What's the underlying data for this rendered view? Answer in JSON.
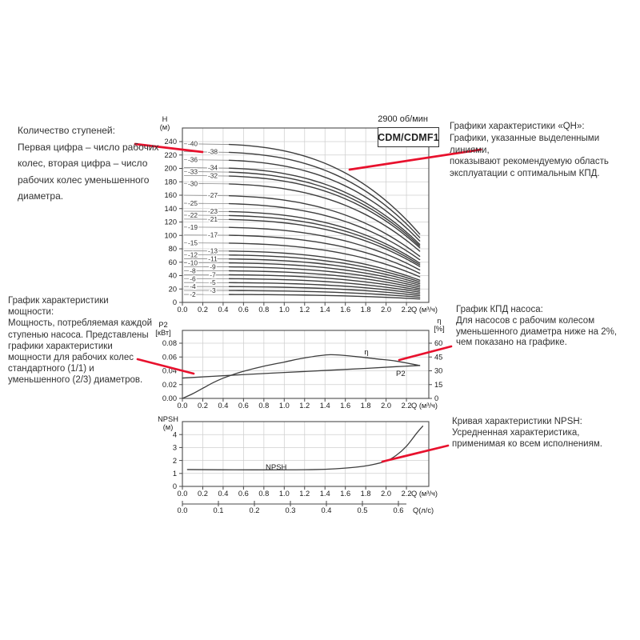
{
  "header": {
    "speed": "2900 об/мин",
    "model": "CDM/CDMF1"
  },
  "annotations": {
    "stages": {
      "title": "Количество ступеней:",
      "body": "Первая цифра – число рабочих\nколес, вторая цифра – число\nрабочих колес уменьшенного\nдиаметра."
    },
    "qh": {
      "title": "Графики характеристики «QH»:",
      "body": "Графики, указанные выделенными линиями,\nпоказывают рекомендуемую область\nэксплуатации с оптимальным КПД."
    },
    "power": {
      "title": "График характеристики мощности:",
      "body": "Мощность, потребляемая каждой\nступенью насоса. Представлены\nграфики характеристики\nмощности для рабочих колес\nстандартного (1/1) и\nуменьшенного (2/3) диаметров."
    },
    "efficiency": {
      "title": "График КПД насоса:",
      "body": "Для насосов с рабочим колесом\nуменьшенного диаметра ниже на 2%,\nчем показано на графике."
    },
    "npsh": {
      "title": "Кривая характеристики NPSH:",
      "body": "Усредненная характеристика,\nприменимая ко всем исполнениям."
    }
  },
  "colors": {
    "accent": "#e8112d",
    "curve": "#3d3d3d",
    "thin_curve": "#8a8a8a",
    "grid": "#cfcfcf",
    "frame": "#4a4a4a",
    "tick_text": "#1a1a1a"
  },
  "chart_data": [
    {
      "id": "qh",
      "type": "line",
      "title": "CDM/CDMF1",
      "rpm": "2900 об/мин",
      "ylabel": "H\n(м)",
      "xlabel": "Q (м³/ч)",
      "xticks": [
        "0.0",
        "0.2",
        "0.4",
        "0.6",
        "0.8",
        "1.0",
        "1.2",
        "1.4",
        "1.6",
        "1.8",
        "2.0",
        "2.2"
      ],
      "yticks": [
        0,
        20,
        40,
        60,
        80,
        100,
        120,
        140,
        160,
        180,
        200,
        220,
        240
      ],
      "xlim": [
        0,
        2.42
      ],
      "ylim": [
        0,
        260
      ],
      "stage_labels": [
        "-40",
        "-38",
        "-36",
        "-34",
        "-33",
        "-32",
        "-30",
        "-27",
        "-25",
        "-23",
        "-22",
        "-21",
        "-19",
        "-17",
        "-15",
        "-13",
        "-12",
        "-11",
        "-10",
        "-9",
        "-8",
        "-7",
        "-6",
        "-5",
        "-4",
        "-3",
        "-2"
      ],
      "head_per_stage_m": 5.92,
      "droop_coef": 0.045,
      "q_bold_range": [
        0.46,
        2.33
      ],
      "note": "H(q) = stages × 5.92 × (1 − 0.045·q³), bold segment = recommended duty range"
    },
    {
      "id": "power",
      "type": "line",
      "ylabel_left": "P2\n[кВт]",
      "ylabel_right": "η\n[%]",
      "xlabel": "Q (м³/ч)",
      "xticks": [
        "0.0",
        "0.2",
        "0.4",
        "0.6",
        "0.8",
        "1.0",
        "1.2",
        "1.4",
        "1.6",
        "1.8",
        "2.0",
        "2.2"
      ],
      "yticks_left": [
        "0.00",
        "0.02",
        "0.04",
        "0.06",
        "0.08"
      ],
      "yticks_right": [
        0,
        15,
        30,
        45,
        60
      ],
      "ylim_left": [
        0,
        0.0985
      ],
      "ylim_right": [
        0,
        74
      ],
      "series": [
        {
          "name": "P2",
          "axis": "left",
          "x": [
            0,
            0.3,
            0.6,
            1.0,
            1.4,
            1.8,
            2.1,
            2.33
          ],
          "y": [
            0.0295,
            0.032,
            0.0345,
            0.0375,
            0.0405,
            0.0435,
            0.046,
            0.0477
          ]
        },
        {
          "name": "η",
          "axis": "right",
          "x": [
            0,
            0.1,
            0.2,
            0.3,
            0.4,
            0.5,
            0.6,
            0.8,
            1.0,
            1.2,
            1.45,
            1.7,
            1.9,
            2.1,
            2.33
          ],
          "y": [
            0,
            5,
            11,
            17,
            22,
            26,
            29.5,
            35,
            39.5,
            44,
            47.5,
            45.5,
            43,
            40.5,
            35.7
          ]
        }
      ]
    },
    {
      "id": "npsh",
      "type": "line",
      "ylabel": "NPSH\n(м)",
      "xlabel": "Q (м³/ч)",
      "xlabel2": "Q(л/с)",
      "xticks": [
        "0.0",
        "0.2",
        "0.4",
        "0.6",
        "0.8",
        "1.0",
        "1.2",
        "1.4",
        "1.6",
        "1.8",
        "2.0",
        "2.2"
      ],
      "yticks": [
        0,
        1,
        2,
        3,
        4
      ],
      "xticks2": [
        "0.0",
        "0.1",
        "0.2",
        "0.3",
        "0.4",
        "0.5",
        "0.6"
      ],
      "ylim": [
        0,
        5
      ],
      "series": [
        {
          "name": "NPSH",
          "x": [
            0.05,
            0.5,
            1.0,
            1.3,
            1.5,
            1.7,
            1.85,
            2.0,
            2.1,
            2.2,
            2.3,
            2.36
          ],
          "y": [
            1.3,
            1.28,
            1.28,
            1.3,
            1.36,
            1.48,
            1.65,
            1.95,
            2.4,
            3.1,
            4.1,
            4.65
          ]
        }
      ]
    }
  ]
}
